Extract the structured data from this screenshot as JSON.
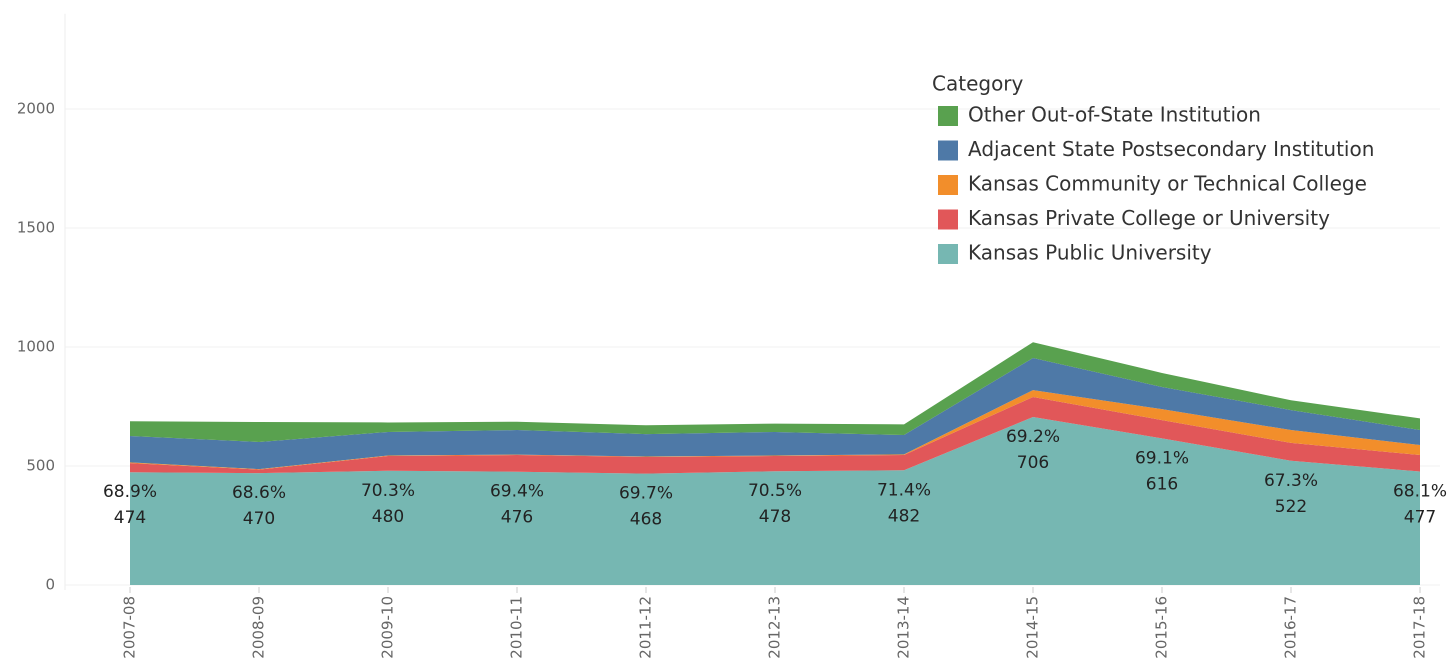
{
  "chart_data": {
    "type": "stacked_area",
    "categories": [
      "2007-08",
      "2008-09",
      "2009-10",
      "2010-11",
      "2011-12",
      "2012-13",
      "2013-14",
      "2014-15",
      "2015-16",
      "2016-17",
      "2017-18"
    ],
    "legend_title": "Category",
    "series": [
      {
        "name": "Kansas Public University",
        "color": "#76b7b2",
        "values": [
          474,
          470,
          480,
          476,
          468,
          478,
          482,
          706,
          616,
          522,
          477
        ],
        "shares": [
          68.9,
          68.6,
          70.3,
          69.4,
          69.7,
          70.5,
          71.4,
          69.2,
          69.1,
          67.3,
          68.1
        ],
        "share_labels": [
          "68.9%",
          "68.6%",
          "70.3%",
          "69.4%",
          "69.7%",
          "70.5%",
          "71.4%",
          "69.2%",
          "69.1%",
          "67.3%",
          "68.1%"
        ]
      },
      {
        "name": "Kansas Private College or University",
        "color": "#e15759",
        "values": [
          38,
          15,
          62,
          70,
          70,
          64,
          64,
          84,
          77,
          75,
          69
        ]
      },
      {
        "name": "Kansas Community or Technical College",
        "color": "#f28e2b",
        "values": [
          3,
          2,
          2,
          2,
          2,
          2,
          3,
          29,
          46,
          54,
          42
        ]
      },
      {
        "name": "Adjacent State Postsecondary Institution",
        "color": "#4e79a7",
        "values": [
          111,
          114,
          99,
          103,
          94,
          99,
          81,
          135,
          93,
          84,
          63
        ]
      },
      {
        "name": "Other Out-of-State Institution",
        "color": "#59a14f",
        "values": [
          62,
          84,
          40,
          35,
          37,
          35,
          45,
          66,
          59,
          41,
          49
        ]
      }
    ],
    "ylim": [
      0,
      2400
    ],
    "yticks": [
      0,
      500,
      1000,
      1500,
      2000
    ],
    "grid": true
  }
}
